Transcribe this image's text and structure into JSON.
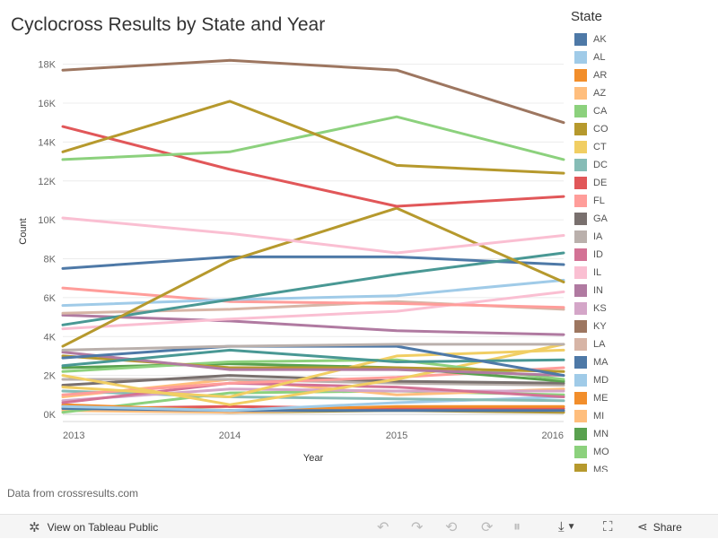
{
  "title": "Cyclocross Results by State and Year",
  "source_note": "Data from crossresults.com",
  "toolbar": {
    "view_label": "View on Tableau Public",
    "share_label": "Share"
  },
  "legend": {
    "title": "State",
    "items": [
      {
        "label": "AK",
        "color": "#4e79a7"
      },
      {
        "label": "AL",
        "color": "#a0cbe8"
      },
      {
        "label": "AR",
        "color": "#f28e2b"
      },
      {
        "label": "AZ",
        "color": "#ffbe7d"
      },
      {
        "label": "CA",
        "color": "#8cd17d"
      },
      {
        "label": "CO",
        "color": "#b6992d"
      },
      {
        "label": "CT",
        "color": "#f1ce63"
      },
      {
        "label": "DC",
        "color": "#86bcb6"
      },
      {
        "label": "DE",
        "color": "#e15759"
      },
      {
        "label": "FL",
        "color": "#ff9d9a"
      },
      {
        "label": "GA",
        "color": "#79706e"
      },
      {
        "label": "IA",
        "color": "#bab0ac"
      },
      {
        "label": "ID",
        "color": "#d37295"
      },
      {
        "label": "IL",
        "color": "#fabfd2"
      },
      {
        "label": "IN",
        "color": "#b07aa1"
      },
      {
        "label": "KS",
        "color": "#d4a6c8"
      },
      {
        "label": "KY",
        "color": "#9d7660"
      },
      {
        "label": "LA",
        "color": "#d7b5a6"
      },
      {
        "label": "MA",
        "color": "#4e79a7"
      },
      {
        "label": "MD",
        "color": "#a0cbe8"
      },
      {
        "label": "ME",
        "color": "#f28e2b"
      },
      {
        "label": "MI",
        "color": "#ffbe7d"
      },
      {
        "label": "MN",
        "color": "#59a14f"
      },
      {
        "label": "MO",
        "color": "#8cd17d"
      },
      {
        "label": "MS",
        "color": "#b6992d"
      }
    ]
  },
  "chart_data": {
    "type": "line",
    "title": "Cyclocross Results by State and Year",
    "xlabel": "Year",
    "ylabel": "Count",
    "x": [
      "2013",
      "2014",
      "2015",
      "2016"
    ],
    "ylim": [
      0,
      19000
    ],
    "yticks": [
      "0K",
      "2K",
      "4K",
      "6K",
      "8K",
      "10K",
      "12K",
      "14K",
      "16K",
      "18K"
    ],
    "ytick_values": [
      0,
      2000,
      4000,
      6000,
      8000,
      10000,
      12000,
      14000,
      16000,
      18000
    ],
    "grid": true,
    "legend_position": "right",
    "series": [
      {
        "color": "#9d7660",
        "values": [
          17700,
          18200,
          17700,
          15000
        ]
      },
      {
        "color": "#b6992d",
        "values": [
          13500,
          16100,
          12800,
          12400
        ]
      },
      {
        "color": "#8cd17d",
        "values": [
          13100,
          13500,
          15300,
          13100
        ]
      },
      {
        "color": "#e15759",
        "values": [
          14800,
          12600,
          10700,
          11200
        ]
      },
      {
        "color": "#fabfd2",
        "values": [
          10100,
          9300,
          8300,
          9200
        ]
      },
      {
        "color": "#b6992d",
        "values": [
          3500,
          7900,
          10600,
          6800
        ]
      },
      {
        "color": "#499894",
        "values": [
          4600,
          5900,
          7200,
          8300
        ]
      },
      {
        "color": "#4e79a7",
        "values": [
          7500,
          8100,
          8100,
          7700
        ]
      },
      {
        "color": "#a0cbe8",
        "values": [
          5600,
          5900,
          6100,
          6900
        ]
      },
      {
        "color": "#ff9d9a",
        "values": [
          6500,
          5800,
          5700,
          5500
        ]
      },
      {
        "color": "#fabfd2",
        "values": [
          4400,
          4900,
          5300,
          6300
        ]
      },
      {
        "color": "#d7b5a6",
        "values": [
          5200,
          5400,
          5800,
          5400
        ]
      },
      {
        "color": "#b07aa1",
        "values": [
          5100,
          4800,
          4300,
          4100
        ]
      },
      {
        "color": "#bab0ac",
        "values": [
          3300,
          3500,
          3600,
          3600
        ]
      },
      {
        "color": "#4e79a7",
        "values": [
          2900,
          3500,
          3500,
          2000
        ]
      },
      {
        "color": "#499894",
        "values": [
          2500,
          3300,
          2700,
          2800
        ]
      },
      {
        "color": "#b07aa1",
        "values": [
          3200,
          2300,
          2300,
          2000
        ]
      },
      {
        "color": "#b6992d",
        "values": [
          3000,
          2400,
          2400,
          2200
        ]
      },
      {
        "color": "#f1ce63",
        "values": [
          1400,
          900,
          3000,
          3300
        ]
      },
      {
        "color": "#8cd17d",
        "values": [
          2200,
          2700,
          2800,
          1800
        ]
      },
      {
        "color": "#59a14f",
        "values": [
          2400,
          2600,
          2400,
          1700
        ]
      },
      {
        "color": "#f1ce63",
        "values": [
          2000,
          500,
          1800,
          3600
        ]
      },
      {
        "color": "#ff9d9a",
        "values": [
          1000,
          1600,
          1900,
          2400
        ]
      },
      {
        "color": "#79706e",
        "values": [
          1500,
          2000,
          1700,
          1600
        ]
      },
      {
        "color": "#d37295",
        "values": [
          600,
          1600,
          1400,
          900
        ]
      },
      {
        "color": "#bab0ac",
        "values": [
          1800,
          1800,
          1600,
          1500
        ]
      },
      {
        "color": "#d4a6c8",
        "values": [
          700,
          1300,
          1200,
          1200
        ]
      },
      {
        "color": "#86bcb6",
        "values": [
          1200,
          900,
          800,
          700
        ]
      },
      {
        "color": "#a0cbe8",
        "values": [
          400,
          200,
          600,
          900
        ]
      },
      {
        "color": "#ffbe7d",
        "values": [
          900,
          1800,
          1000,
          1300
        ]
      },
      {
        "color": "#4e79a7",
        "values": [
          300,
          200,
          200,
          200
        ]
      },
      {
        "color": "#f28e2b",
        "values": [
          500,
          200,
          400,
          400
        ]
      },
      {
        "color": "#e15759",
        "values": [
          300,
          400,
          300,
          300
        ]
      },
      {
        "color": "#8cd17d",
        "values": [
          100,
          1100,
          1200,
          1000
        ]
      },
      {
        "color": "#ffbe7d",
        "values": [
          200,
          100,
          300,
          200
        ]
      },
      {
        "color": "#b6992d",
        "values": [
          400,
          100,
          200,
          100
        ]
      }
    ]
  }
}
